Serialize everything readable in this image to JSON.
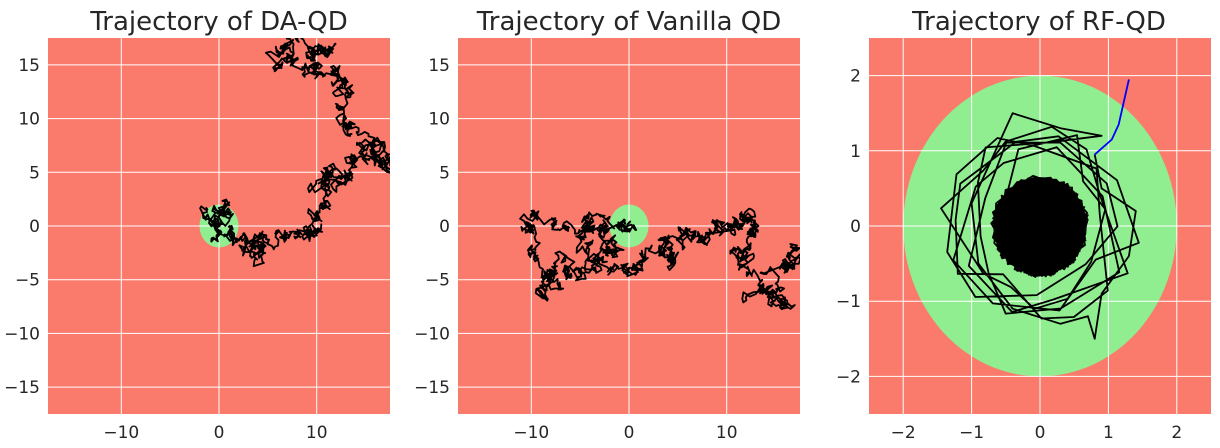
{
  "colors": {
    "background_region": "#fa7a6c",
    "target_region": "#90ee90",
    "trajectory": "#000000",
    "initial_segment": "#0000ff",
    "grid": "#ffffff"
  },
  "chart_data": [
    {
      "type": "line",
      "title": "Trajectory of DA-QD",
      "xlabel": "",
      "ylabel": "",
      "xlim": [
        -17.5,
        17.5
      ],
      "ylim": [
        -17.5,
        17.5
      ],
      "xticks": [
        -10,
        0,
        10
      ],
      "xtick_labels": [
        "−10",
        "0",
        "10"
      ],
      "yticks": [
        -15,
        -10,
        -5,
        0,
        5,
        10,
        15
      ],
      "ytick_labels": [
        "−15",
        "−10",
        "−5",
        "0",
        "5",
        "10",
        "15"
      ],
      "grid": true,
      "target_region": {
        "shape": "circle",
        "center": [
          0,
          0
        ],
        "radius": 2
      },
      "trajectory": {
        "kind": "random_walk",
        "waypoints": [
          [
            0,
            0
          ],
          [
            -1,
            1
          ],
          [
            1,
            2
          ],
          [
            0,
            -1
          ],
          [
            3,
            -1
          ],
          [
            5,
            -3
          ],
          [
            4,
            -1
          ],
          [
            7,
            -1
          ],
          [
            9,
            -1
          ],
          [
            10,
            1
          ],
          [
            10,
            3
          ],
          [
            11,
            5
          ],
          [
            12,
            4
          ],
          [
            13,
            6
          ],
          [
            15,
            7
          ],
          [
            17,
            6
          ],
          [
            16,
            7
          ],
          [
            13,
            9
          ],
          [
            13,
            12
          ],
          [
            12,
            14
          ],
          [
            10,
            15
          ],
          [
            7,
            15
          ],
          [
            6,
            16
          ],
          [
            8,
            17
          ],
          [
            10,
            16
          ],
          [
            12,
            17
          ]
        ]
      }
    },
    {
      "type": "line",
      "title": "Trajectory of Vanilla QD",
      "xlabel": "",
      "ylabel": "",
      "xlim": [
        -17.5,
        17.5
      ],
      "ylim": [
        -17.5,
        17.5
      ],
      "xticks": [
        -10,
        0,
        10
      ],
      "xtick_labels": [
        "−10",
        "0",
        "10"
      ],
      "yticks": [
        -15,
        -10,
        -5,
        0,
        5,
        10,
        15
      ],
      "ytick_labels": [
        "−15",
        "−10",
        "−5",
        "0",
        "5",
        "10",
        "15"
      ],
      "grid": true,
      "target_region": {
        "shape": "circle",
        "center": [
          0,
          0
        ],
        "radius": 2
      },
      "trajectory": {
        "kind": "random_walk",
        "waypoints": [
          [
            0,
            0
          ],
          [
            -2,
            0
          ],
          [
            -6,
            0
          ],
          [
            -10,
            1
          ],
          [
            -10,
            -2
          ],
          [
            -8,
            -5
          ],
          [
            -9,
            -6
          ],
          [
            -7,
            -3
          ],
          [
            -5,
            -5
          ],
          [
            -3,
            -3
          ],
          [
            -5,
            -1
          ],
          [
            -3,
            0
          ],
          [
            -1,
            -2
          ],
          [
            -2,
            -4
          ],
          [
            0,
            -4
          ],
          [
            3,
            -2
          ],
          [
            5,
            -3
          ],
          [
            4,
            -1
          ],
          [
            7,
            -1
          ],
          [
            9,
            -1
          ],
          [
            11,
            0
          ],
          [
            12,
            1
          ],
          [
            13,
            0
          ],
          [
            11,
            -3
          ],
          [
            12,
            -4
          ],
          [
            14,
            -6
          ],
          [
            16,
            -7
          ],
          [
            15,
            -4
          ],
          [
            17,
            -2
          ],
          [
            17,
            -4
          ]
        ]
      }
    },
    {
      "type": "line",
      "title": "Trajectory of RF-QD",
      "xlabel": "",
      "ylabel": "",
      "xlim": [
        -2.5,
        2.5
      ],
      "ylim": [
        -2.5,
        2.5
      ],
      "xticks": [
        -2,
        -1,
        0,
        1,
        2
      ],
      "xtick_labels": [
        "−2",
        "−1",
        "0",
        "1",
        "2"
      ],
      "yticks": [
        -2,
        -1,
        0,
        1,
        2
      ],
      "ytick_labels": [
        "−2",
        "−1",
        "0",
        "1",
        "2"
      ],
      "grid": true,
      "target_region": {
        "shape": "circle",
        "center": [
          0,
          0
        ],
        "radius": 2
      },
      "initial_segment": [
        [
          1.3,
          1.95
        ],
        [
          1.15,
          1.35
        ],
        [
          1.05,
          1.15
        ],
        [
          0.8,
          0.95
        ]
      ],
      "trajectory": {
        "kind": "spiral_to_origin",
        "start": [
          0.8,
          0.95
        ],
        "extra_path": [
          [
            0.9,
            0.5
          ],
          [
            1.4,
            0.2
          ],
          [
            1.3,
            -0.4
          ],
          [
            0.9,
            -0.9
          ],
          [
            0.8,
            -1.5
          ],
          [
            0.7,
            -1.2
          ],
          [
            0.3,
            -1.3
          ],
          [
            -0.4,
            -1.1
          ],
          [
            -0.9,
            -0.5
          ],
          [
            -1.0,
            0.3
          ],
          [
            -0.4,
            1.5
          ],
          [
            0.3,
            1.3
          ],
          [
            0.9,
            1.2
          ]
        ],
        "dense_core_radius": 0.65
      }
    }
  ]
}
